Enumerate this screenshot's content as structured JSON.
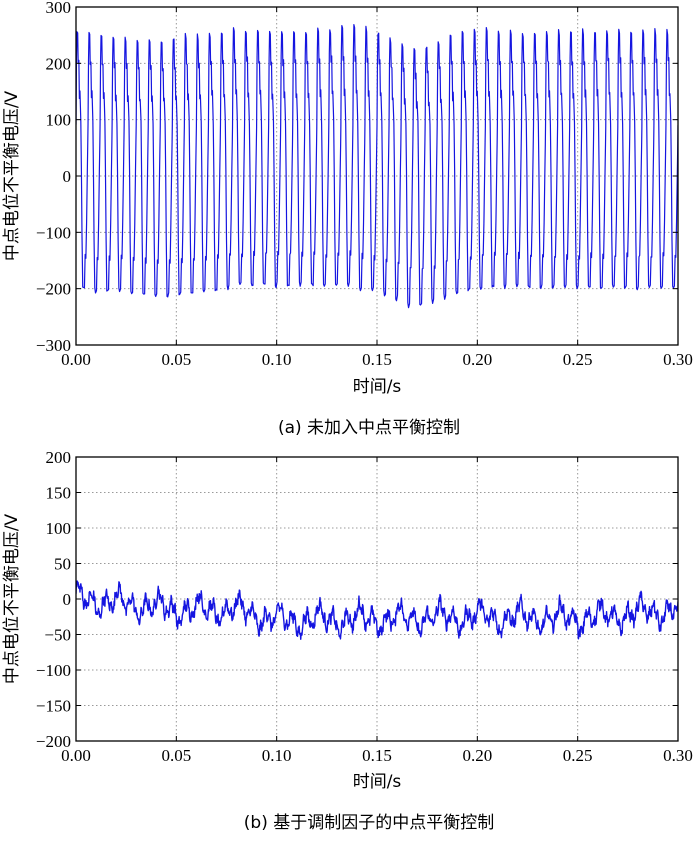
{
  "colors": {
    "series": "#1515e0",
    "grid": "#9a9a9a",
    "axis": "#000000"
  },
  "chart_data": [
    {
      "type": "line",
      "caption": "(a) 未加入中点平衡控制",
      "xlabel": "时间/s",
      "ylabel": "中点电位不平衡电压/V",
      "xlim": [
        0,
        0.3
      ],
      "ylim": [
        -300,
        300
      ],
      "xticks": [
        0,
        0.05,
        0.1,
        0.15,
        0.2,
        0.25,
        0.3
      ],
      "xtick_labels": [
        "0.00",
        "0.05",
        "0.10",
        "0.15",
        "0.20",
        "0.25",
        "0.30"
      ],
      "yticks": [
        -300,
        -200,
        -100,
        0,
        100,
        200,
        300
      ],
      "ytick_labels": [
        "−300",
        "−200",
        "−100",
        "0",
        "100",
        "200",
        "300"
      ],
      "grid": true,
      "series": [
        {
          "waveform": "square-like oscillation",
          "periods": 50,
          "t_start": 0,
          "t_end": 0.3,
          "peak_max": [
            255,
            255,
            250,
            250,
            245,
            240,
            240,
            240,
            245,
            250,
            250,
            255,
            255,
            260,
            260,
            258,
            255,
            255,
            255,
            258,
            260,
            262,
            265,
            265,
            262,
            255,
            245,
            235,
            225,
            230,
            240,
            250,
            255,
            258,
            260,
            258,
            255,
            255,
            255,
            258,
            258,
            258,
            258,
            258,
            258,
            258,
            258,
            258,
            258,
            258
          ],
          "peak_min": [
            -200,
            -205,
            -205,
            -205,
            -210,
            -212,
            -215,
            -215,
            -212,
            -210,
            -205,
            -205,
            -200,
            -195,
            -195,
            -195,
            -195,
            -195,
            -195,
            -195,
            -195,
            -195,
            -195,
            -200,
            -205,
            -210,
            -220,
            -230,
            -232,
            -225,
            -215,
            -210,
            -205,
            -200,
            -198,
            -198,
            -198,
            -198,
            -200,
            -200,
            -200,
            -200,
            -200,
            -200,
            -200,
            -200,
            -200,
            -200,
            -200,
            -200
          ]
        }
      ]
    },
    {
      "type": "line",
      "caption": "(b) 基于调制因子的中点平衡控制",
      "xlabel": "时间/s",
      "ylabel": "中点电位不平衡电压/V",
      "xlim": [
        0,
        0.3
      ],
      "ylim": [
        -200,
        200
      ],
      "xticks": [
        0,
        0.05,
        0.1,
        0.15,
        0.2,
        0.25,
        0.3
      ],
      "xtick_labels": [
        "0.00",
        "0.05",
        "0.10",
        "0.15",
        "0.20",
        "0.25",
        "0.30"
      ],
      "yticks": [
        -200,
        -150,
        -100,
        -50,
        0,
        50,
        100,
        150,
        200
      ],
      "ytick_labels": [
        "−200",
        "−150",
        "−100",
        "−50",
        "0",
        "50",
        "100",
        "150",
        "200"
      ],
      "grid": true,
      "series": [
        {
          "waveform": "noisy ripple",
          "t_start": 0,
          "t_end": 0.3,
          "mean_trend_t": [
            0,
            0.02,
            0.05,
            0.08,
            0.1,
            0.15,
            0.2,
            0.25,
            0.3
          ],
          "mean_trend_v": [
            0,
            -5,
            -15,
            -15,
            -30,
            -28,
            -25,
            -28,
            -15
          ],
          "ripple_amplitude": 20,
          "range": [
            -75,
            40
          ]
        }
      ]
    }
  ]
}
